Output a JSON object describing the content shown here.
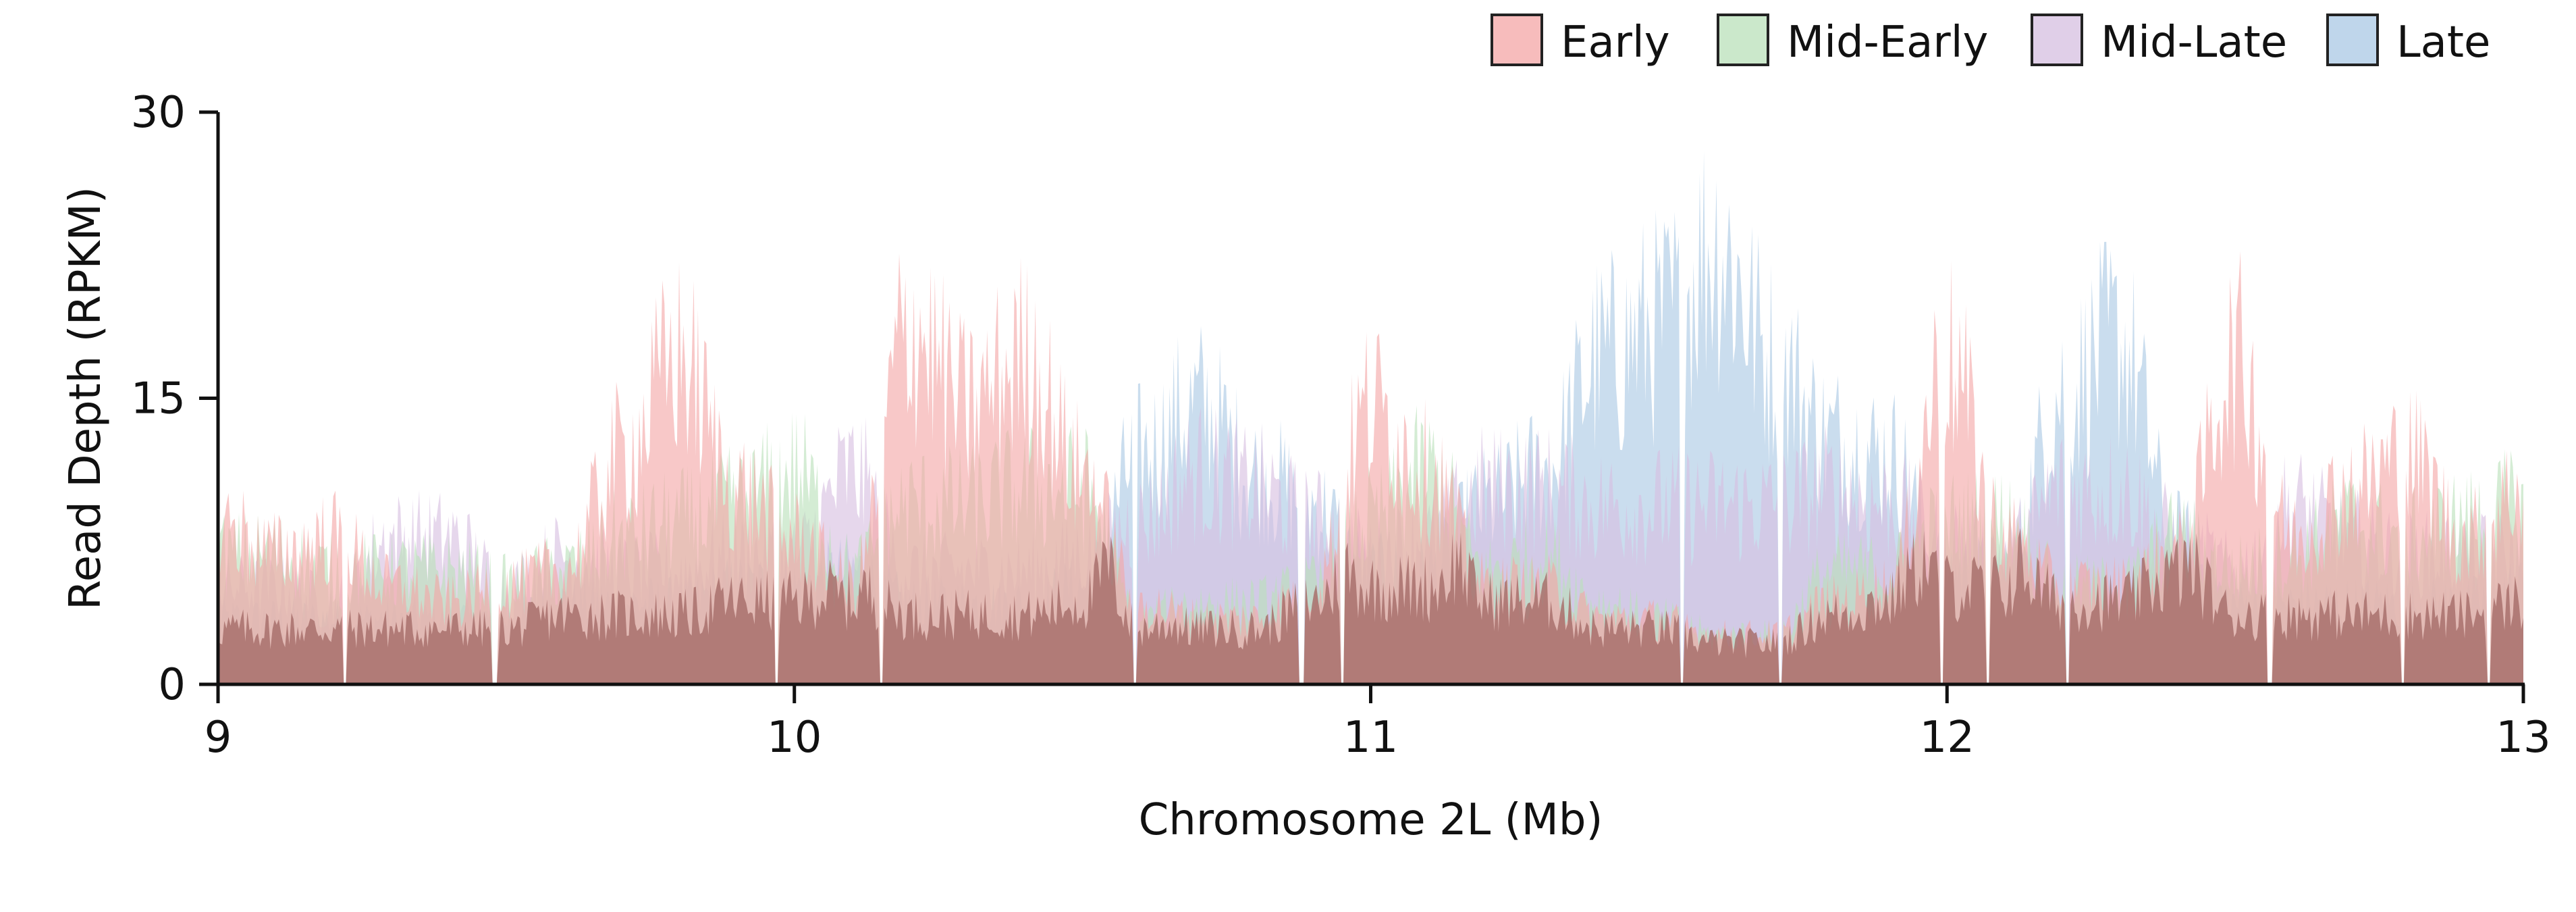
{
  "chart_data": {
    "type": "area",
    "title": "",
    "xlabel": "Chromosome 2L (Mb)",
    "ylabel": "Read Depth (RPKM)",
    "xlim": [
      9,
      13
    ],
    "ylim": [
      0,
      30
    ],
    "xticks": [
      9,
      10,
      11,
      12,
      13
    ],
    "yticks": [
      0,
      15,
      30
    ],
    "grid": false,
    "legend_position": "top-right",
    "legend_entries": [
      "Early",
      "Mid-Early",
      "Mid-Late",
      "Late"
    ],
    "x": [
      9.0,
      9.1,
      9.2,
      9.3,
      9.4,
      9.5,
      9.6,
      9.7,
      9.8,
      9.9,
      10.0,
      10.1,
      10.2,
      10.3,
      10.4,
      10.5,
      10.6,
      10.7,
      10.8,
      10.9,
      11.0,
      11.1,
      11.2,
      11.3,
      11.4,
      11.5,
      11.6,
      11.7,
      11.8,
      11.9,
      12.0,
      12.1,
      12.2,
      12.3,
      12.4,
      12.5,
      12.6,
      12.7,
      12.8,
      12.9,
      13.0
    ],
    "series": [
      {
        "name": "Early",
        "color": "#f4a6a6",
        "values": [
          10,
          8,
          9,
          6,
          5,
          6,
          7,
          14,
          20,
          12,
          9,
          6,
          22,
          17,
          20,
          13,
          5,
          4,
          4,
          6,
          17,
          13,
          6,
          6,
          4,
          4,
          3,
          3,
          5,
          6,
          20,
          9,
          6,
          6,
          8,
          20,
          9,
          12,
          14,
          9,
          12
        ]
      },
      {
        "name": "Mid-Early",
        "color": "#b9e0b9",
        "values": [
          8,
          8,
          7,
          7,
          7,
          6,
          7,
          9,
          10,
          11,
          13,
          7,
          11,
          11,
          12,
          12,
          4,
          5,
          5,
          6,
          10,
          13,
          7,
          8,
          5,
          4,
          3,
          3,
          7,
          7,
          10,
          10,
          6,
          6,
          9,
          7,
          8,
          10,
          9,
          10,
          11
        ]
      },
      {
        "name": "Mid-Late",
        "color": "#d6bfe0",
        "values": [
          6,
          6,
          5,
          9,
          9,
          6,
          8,
          7,
          7,
          8,
          8,
          13,
          7,
          7,
          7,
          8,
          10,
          13,
          12,
          10,
          8,
          9,
          12,
          12,
          11,
          11,
          11,
          11,
          12,
          11,
          9,
          8,
          12,
          12,
          9,
          7,
          11,
          9,
          8,
          8,
          8
        ]
      },
      {
        "name": "Late",
        "color": "#a9c8e4",
        "values": [
          4,
          4,
          4,
          4,
          4,
          4,
          5,
          5,
          5,
          6,
          6,
          7,
          5,
          5,
          5,
          6,
          14,
          17,
          13,
          11,
          7,
          7,
          11,
          13,
          20,
          22,
          27,
          20,
          15,
          14,
          7,
          7,
          18,
          21,
          9,
          5,
          5,
          5,
          5,
          5,
          6
        ]
      }
    ]
  }
}
